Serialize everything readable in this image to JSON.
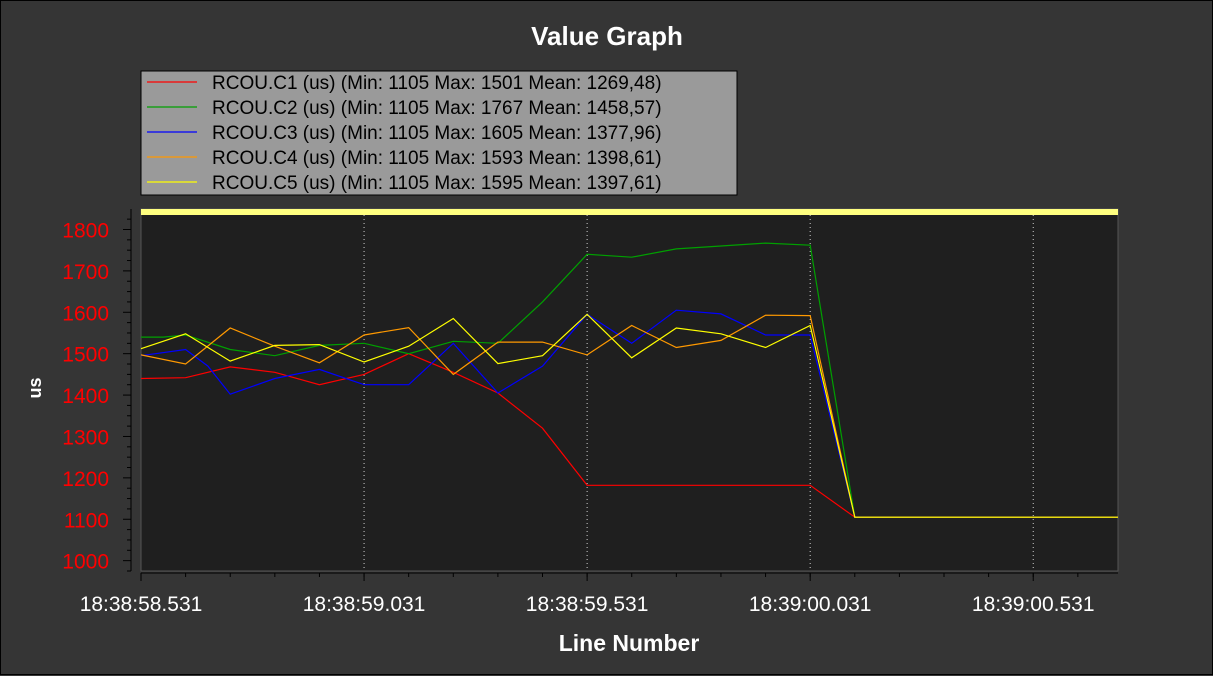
{
  "chart_data": {
    "type": "line",
    "title": "Value Graph",
    "xlabel": "Line Number",
    "ylabel": "us",
    "ylim": [
      975,
      1835
    ],
    "y_ticks": [
      1000,
      1100,
      1200,
      1300,
      1400,
      1500,
      1600,
      1700,
      1800
    ],
    "x_ticks": [
      "18:38:58.531",
      "18:38:59.031",
      "18:38:59.531",
      "18:39:00.031",
      "18:39:00.531"
    ],
    "x_tick_values": [
      0,
      0.5,
      1.0,
      1.5,
      2.0
    ],
    "xlim": [
      0,
      2.19
    ],
    "grid": "vertical dotted",
    "legend_position": "top-left",
    "colors": {
      "background": "#353535",
      "plot_area": "#1f1f1f",
      "legend_bg": "#9a9a9a",
      "axis_tick_text": "#ff0000",
      "axis_ylabel": "#ff0000",
      "text": "#ffffff",
      "top_band": "#ffff80"
    },
    "series": [
      {
        "name": "RCOU.C1 (us) (Min: 1105 Max: 1501 Mean: 1269,48)",
        "color": "#ff0000",
        "x": [
          0,
          0.1,
          0.2,
          0.3,
          0.4,
          0.5,
          0.6,
          0.7,
          0.8,
          0.9,
          1.0,
          1.1,
          1.2,
          1.3,
          1.4,
          1.5,
          1.6,
          1.7,
          1.8,
          1.9,
          2.0,
          2.1,
          2.19
        ],
        "values": [
          1440,
          1442,
          1468,
          1455,
          1425,
          1450,
          1500,
          1455,
          1405,
          1320,
          1182,
          1182,
          1182,
          1182,
          1182,
          1182,
          1105,
          1105,
          1105,
          1105,
          1105,
          1105,
          1105
        ]
      },
      {
        "name": "RCOU.C2 (us) (Min: 1105 Max: 1767 Mean: 1458,57)",
        "color": "#00a000",
        "x": [
          0,
          0.05,
          0.1,
          0.2,
          0.3,
          0.4,
          0.5,
          0.6,
          0.7,
          0.8,
          0.9,
          1.0,
          1.1,
          1.2,
          1.3,
          1.4,
          1.5,
          1.6,
          1.7,
          1.8,
          1.9,
          2.0,
          2.1,
          2.19
        ],
        "values": [
          1540,
          1540,
          1545,
          1510,
          1495,
          1520,
          1525,
          1500,
          1530,
          1525,
          1625,
          1740,
          1733,
          1753,
          1760,
          1767,
          1762,
          1105,
          1105,
          1105,
          1105,
          1105,
          1105,
          1105
        ]
      },
      {
        "name": "RCOU.C3 (us) (Min: 1105 Max: 1605 Mean: 1377,96)",
        "color": "#0000ff",
        "x": [
          0,
          0.1,
          0.15,
          0.2,
          0.3,
          0.4,
          0.5,
          0.6,
          0.7,
          0.8,
          0.9,
          1.0,
          1.1,
          1.2,
          1.3,
          1.4,
          1.5,
          1.6,
          1.7,
          1.8,
          1.9,
          2.0,
          2.1,
          2.19
        ],
        "values": [
          1495,
          1510,
          1470,
          1402,
          1440,
          1462,
          1425,
          1425,
          1525,
          1405,
          1470,
          1595,
          1525,
          1605,
          1596,
          1545,
          1545,
          1105,
          1105,
          1105,
          1105,
          1105,
          1105,
          1105
        ]
      },
      {
        "name": "RCOU.C4 (us) (Min: 1105 Max: 1593 Mean: 1398,61)",
        "color": "#ff9900",
        "x": [
          0,
          0.1,
          0.2,
          0.3,
          0.4,
          0.5,
          0.6,
          0.7,
          0.8,
          0.9,
          1.0,
          1.1,
          1.2,
          1.3,
          1.4,
          1.5,
          1.6,
          1.7,
          1.8,
          1.9,
          2.0,
          2.1,
          2.19
        ],
        "values": [
          1497,
          1475,
          1562,
          1518,
          1478,
          1545,
          1563,
          1450,
          1528,
          1528,
          1497,
          1568,
          1515,
          1532,
          1593,
          1592,
          1105,
          1105,
          1105,
          1105,
          1105,
          1105,
          1105
        ]
      },
      {
        "name": "RCOU.C5 (us) (Min: 1105 Max: 1595 Mean: 1397,61)",
        "color": "#ffff00",
        "x": [
          0,
          0.1,
          0.2,
          0.3,
          0.4,
          0.5,
          0.6,
          0.7,
          0.8,
          0.9,
          1.0,
          1.1,
          1.2,
          1.3,
          1.4,
          1.5,
          1.6,
          1.7,
          1.8,
          1.9,
          2.0,
          2.1,
          2.19
        ],
        "values": [
          1512,
          1548,
          1482,
          1520,
          1522,
          1480,
          1518,
          1585,
          1476,
          1495,
          1595,
          1490,
          1562,
          1548,
          1515,
          1568,
          1105,
          1105,
          1105,
          1105,
          1105,
          1105,
          1105
        ]
      }
    ]
  }
}
